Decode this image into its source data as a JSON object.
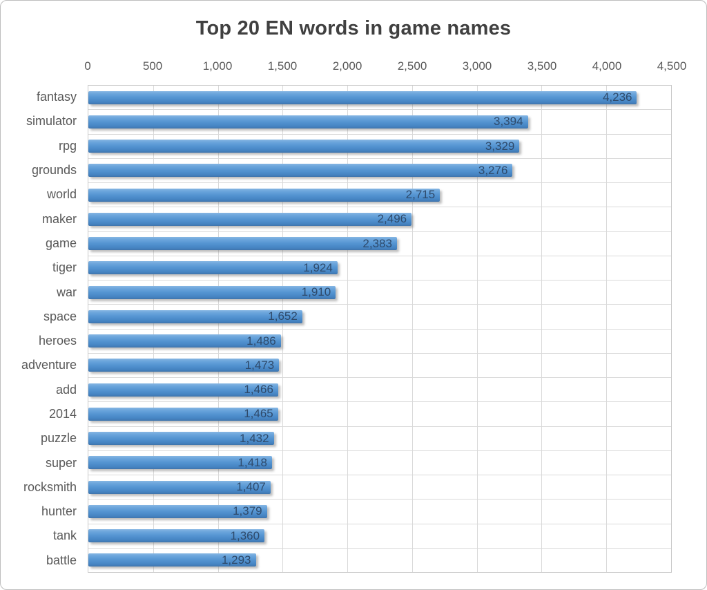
{
  "card": {
    "title": "Top 20 EN words in game names"
  },
  "chart_data": {
    "type": "bar",
    "orientation": "horizontal",
    "title": "Top 20 EN words in game names",
    "categories": [
      "fantasy",
      "simulator",
      "rpg",
      "grounds",
      "world",
      "maker",
      "game",
      "tiger",
      "war",
      "space",
      "heroes",
      "adventure",
      "add",
      "2014",
      "puzzle",
      "super",
      "rocksmith",
      "hunter",
      "tank",
      "battle"
    ],
    "values": [
      4236,
      3394,
      3329,
      3276,
      2715,
      2496,
      2383,
      1924,
      1910,
      1652,
      1486,
      1473,
      1466,
      1465,
      1432,
      1418,
      1407,
      1379,
      1360,
      1293
    ],
    "value_labels": [
      "4,236",
      "3,394",
      "3,329",
      "3,276",
      "2,715",
      "2,496",
      "2,383",
      "1,924",
      "1,910",
      "1,652",
      "1,486",
      "1,473",
      "1,466",
      "1,465",
      "1,432",
      "1,418",
      "1,407",
      "1,379",
      "1,360",
      "1,293"
    ],
    "x_ticks": [
      "0",
      "500",
      "1,000",
      "1,500",
      "2,000",
      "2,500",
      "3,000",
      "3,500",
      "4,000",
      "4,500"
    ],
    "x_tick_values": [
      0,
      500,
      1000,
      1500,
      2000,
      2500,
      3000,
      3500,
      4000,
      4500
    ],
    "xlim": [
      0,
      4500
    ],
    "grid": true,
    "legend": "none",
    "colors": {
      "bar": "#5595D2",
      "bar_gradient_top": "#86B6E3",
      "bar_gradient_bottom": "#3F74AB",
      "data_label": "#2E4A6B",
      "axis_text": "#595959",
      "title_text": "#404040",
      "gridline": "#D9D9D9",
      "plot_border": "#C9C9C9",
      "card_border": "#BDBDBD"
    }
  }
}
